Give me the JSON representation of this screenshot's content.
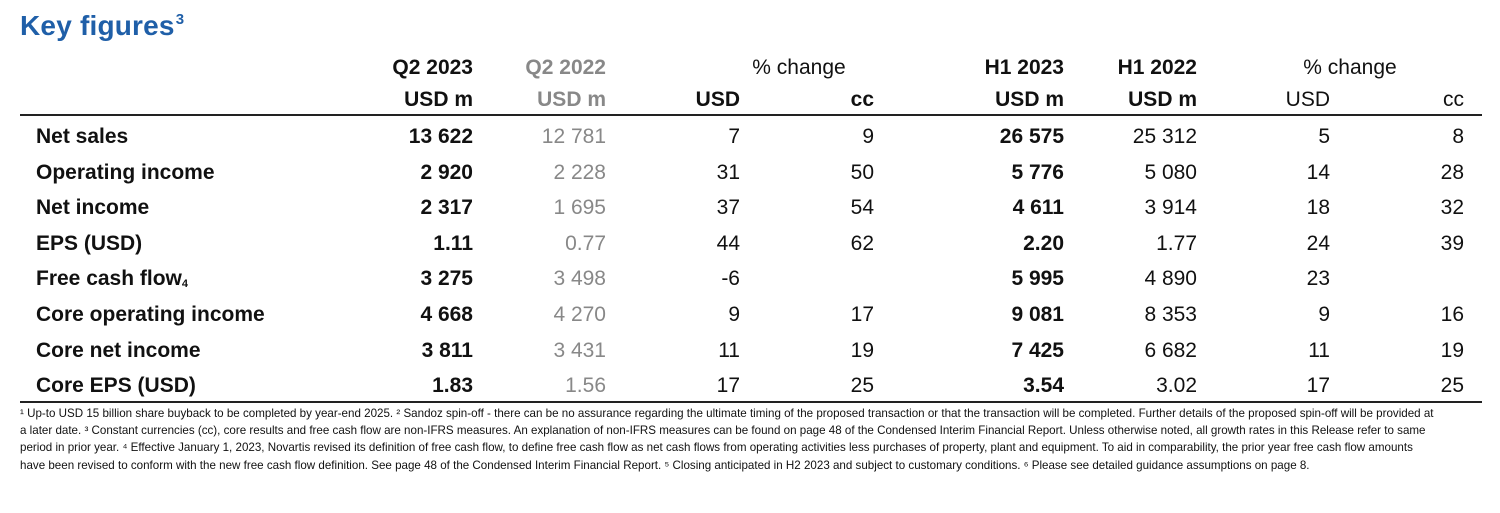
{
  "title": {
    "text": "Key figures",
    "sup": "3"
  },
  "headers": {
    "q2023": "Q2 2023",
    "q2022": "Q2 2022",
    "pct1": "% change",
    "h2023": "H1 2023",
    "h2022": "H1 2022",
    "pct2": "% change",
    "unit_q2023": "USD m",
    "unit_q2022": "USD m",
    "usd1": "USD",
    "cc1": "cc",
    "unit_h2023": "USD m",
    "unit_h2022": "USD m",
    "usd2": "USD",
    "cc2": "cc"
  },
  "rows": [
    {
      "label": "Net sales",
      "sup": "",
      "q2023": "13 622",
      "q2022": "12 781",
      "usd1": "7",
      "cc1": "9",
      "h2023": "26 575",
      "h2022": "25 312",
      "usd2": "5",
      "cc2": "8"
    },
    {
      "label": "Operating income",
      "sup": "",
      "q2023": "2 920",
      "q2022": "2 228",
      "usd1": "31",
      "cc1": "50",
      "h2023": "5 776",
      "h2022": "5 080",
      "usd2": "14",
      "cc2": "28"
    },
    {
      "label": "Net income",
      "sup": "",
      "q2023": "2 317",
      "q2022": "1 695",
      "usd1": "37",
      "cc1": "54",
      "h2023": "4 611",
      "h2022": "3 914",
      "usd2": "18",
      "cc2": "32"
    },
    {
      "label": "EPS (USD)",
      "sup": "",
      "q2023": "1.11",
      "q2022": "0.77",
      "usd1": "44",
      "cc1": "62",
      "h2023": "2.20",
      "h2022": "1.77",
      "usd2": "24",
      "cc2": "39"
    },
    {
      "label": "Free cash flow",
      "sup": "4",
      "q2023": "3 275",
      "q2022": "3 498",
      "usd1": "-6",
      "cc1": "",
      "h2023": "5 995",
      "h2022": "4 890",
      "usd2": "23",
      "cc2": ""
    },
    {
      "label": "Core operating income",
      "sup": "",
      "q2023": "4 668",
      "q2022": "4 270",
      "usd1": "9",
      "cc1": "17",
      "h2023": "9 081",
      "h2022": "8 353",
      "usd2": "9",
      "cc2": "16"
    },
    {
      "label": "Core net income",
      "sup": "",
      "q2023": "3 811",
      "q2022": "3 431",
      "usd1": "11",
      "cc1": "19",
      "h2023": "7 425",
      "h2022": "6 682",
      "usd2": "11",
      "cc2": "19"
    },
    {
      "label": "Core EPS (USD)",
      "sup": "",
      "q2023": "1.83",
      "q2022": "1.56",
      "usd1": "17",
      "cc1": "25",
      "h2023": "3.54",
      "h2022": "3.02",
      "usd2": "17",
      "cc2": "25"
    }
  ],
  "footnotes": "¹ Up-to USD 15 billion share buyback to be completed by year-end 2025. ² Sandoz spin-off - there can be no assurance regarding the ultimate timing of the proposed transaction or that the transaction will be completed. Further details of the proposed spin-off will be provided at a later date.  ³ Constant currencies (cc), core results and free cash flow are non-IFRS measures. An explanation of non-IFRS measures can be found on page 48 of the Condensed Interim Financial Report. Unless otherwise noted, all growth rates in this Release refer to same period in prior year. ⁴ Effective January 1, 2023, Novartis revised its definition of free cash flow, to define free cash flow as net cash flows from operating activities less purchases of property, plant and equipment. To aid in comparability, the prior year free cash flow amounts have been revised to conform with the new free cash flow definition. See page 48 of the Condensed Interim Financial Report. ⁵ Closing anticipated in H2 2023 and subject to customary conditions. ⁶ Please see detailed guidance assumptions on page 8."
}
